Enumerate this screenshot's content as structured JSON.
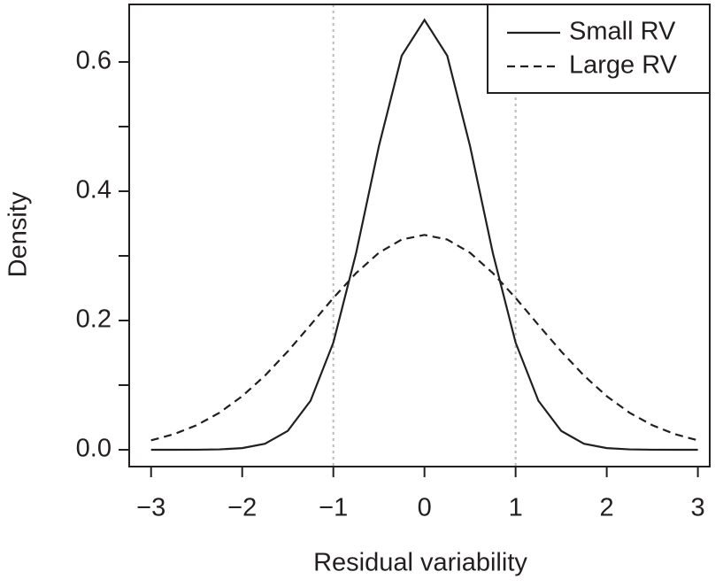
{
  "chart_data": {
    "type": "line",
    "x_label": "Residual variability",
    "y_label": "Density",
    "x": [
      -3,
      -2.75,
      -2.5,
      -2.25,
      -2,
      -1.75,
      -1.5,
      -1.25,
      -1,
      -0.75,
      -0.5,
      -0.25,
      0,
      0.25,
      0.5,
      0.75,
      1,
      1.25,
      1.5,
      1.75,
      2,
      2.25,
      2.5,
      2.75,
      3
    ],
    "series": [
      {
        "name": "Small RV",
        "color": "#231f20",
        "dash": "solid",
        "values": [
          0.0,
          0.0,
          0.0001,
          0.0006,
          0.0026,
          0.0094,
          0.0292,
          0.0759,
          0.1658,
          0.3044,
          0.4698,
          0.6096,
          0.6649,
          0.6096,
          0.4698,
          0.3044,
          0.1658,
          0.0759,
          0.0292,
          0.0094,
          0.0026,
          0.0006,
          0.0001,
          0.0,
          0.0
        ]
      },
      {
        "name": "Large RV",
        "color": "#231f20",
        "dash": "dashed",
        "values": [
          0.0146,
          0.0241,
          0.038,
          0.0573,
          0.0829,
          0.1148,
          0.1522,
          0.1932,
          0.2349,
          0.2734,
          0.3048,
          0.3253,
          0.3324,
          0.3253,
          0.3048,
          0.2734,
          0.2349,
          0.1932,
          0.1522,
          0.1148,
          0.0829,
          0.0573,
          0.038,
          0.0241,
          0.0146
        ]
      }
    ],
    "xlim": [
      -3.24,
      3.13
    ],
    "ylim": [
      -0.026,
      0.689
    ],
    "xticks": [
      {
        "value": -3,
        "label": "−3"
      },
      {
        "value": -2,
        "label": "−2"
      },
      {
        "value": -1,
        "label": "−1"
      },
      0,
      1,
      2,
      3
    ],
    "yticks": [
      {
        "value": 0,
        "label": "0.0"
      },
      {
        "value": 0.2,
        "label": "0.2"
      },
      {
        "value": 0.4,
        "label": "0.4"
      },
      {
        "value": 0.6,
        "label": "0.6"
      }
    ],
    "yticks_minor": [
      0.1,
      0.3,
      0.5
    ],
    "vlines": [
      -1,
      1
    ],
    "vline_color": "#bbbbbb",
    "legend": "top-right"
  }
}
